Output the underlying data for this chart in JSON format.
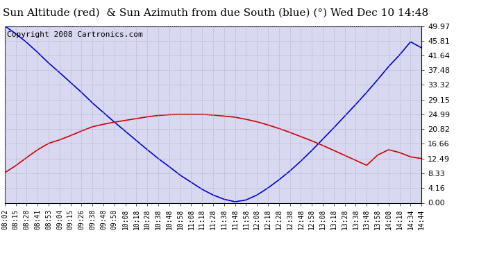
{
  "title": "Sun Altitude (red)  & Sun Azimuth from due South (blue) (°) Wed Dec 10 14:48",
  "copyright_text": "Copyright 2008 Cartronics.com",
  "yticks": [
    0.0,
    4.16,
    8.33,
    12.49,
    16.66,
    20.82,
    24.99,
    29.15,
    33.32,
    37.48,
    41.64,
    45.81,
    49.97
  ],
  "ylim": [
    0.0,
    49.97
  ],
  "time_labels": [
    "08:02",
    "08:15",
    "08:28",
    "08:41",
    "08:53",
    "09:04",
    "09:15",
    "09:26",
    "09:38",
    "09:48",
    "09:58",
    "10:08",
    "10:18",
    "10:28",
    "10:38",
    "10:48",
    "10:58",
    "11:08",
    "11:18",
    "11:28",
    "11:38",
    "11:48",
    "11:58",
    "12:08",
    "12:18",
    "12:28",
    "12:38",
    "12:48",
    "12:58",
    "13:08",
    "13:18",
    "13:28",
    "13:38",
    "13:48",
    "13:58",
    "14:08",
    "14:18",
    "14:34",
    "14:44"
  ],
  "altitude_values": [
    8.5,
    10.5,
    12.8,
    15.0,
    16.8,
    17.8,
    19.0,
    20.3,
    21.5,
    22.2,
    22.8,
    23.3,
    23.8,
    24.3,
    24.7,
    24.9,
    25.0,
    25.0,
    25.0,
    24.8,
    24.5,
    24.2,
    23.6,
    22.9,
    22.0,
    21.0,
    19.9,
    18.7,
    17.5,
    16.2,
    14.8,
    13.4,
    12.0,
    10.6,
    13.5,
    15.0,
    14.2,
    13.0,
    12.5
  ],
  "azimuth_values": [
    49.97,
    47.8,
    45.3,
    42.5,
    39.5,
    36.8,
    34.0,
    31.2,
    28.2,
    25.5,
    22.8,
    20.2,
    17.6,
    15.0,
    12.5,
    10.2,
    7.8,
    5.8,
    3.8,
    2.2,
    1.0,
    0.3,
    0.8,
    2.2,
    4.2,
    6.5,
    9.0,
    11.8,
    14.8,
    18.0,
    21.2,
    24.5,
    27.8,
    31.2,
    34.8,
    38.5,
    41.8,
    45.5,
    43.8
  ],
  "altitude_color": "#cc0000",
  "azimuth_color": "#0000cc",
  "grid_color": "#aaaacc",
  "background_color": "#d8d8f0",
  "plot_border_color": "#000000",
  "title_fontsize": 11,
  "copyright_fontsize": 8,
  "tick_fontsize": 7,
  "ytick_fontsize": 8
}
